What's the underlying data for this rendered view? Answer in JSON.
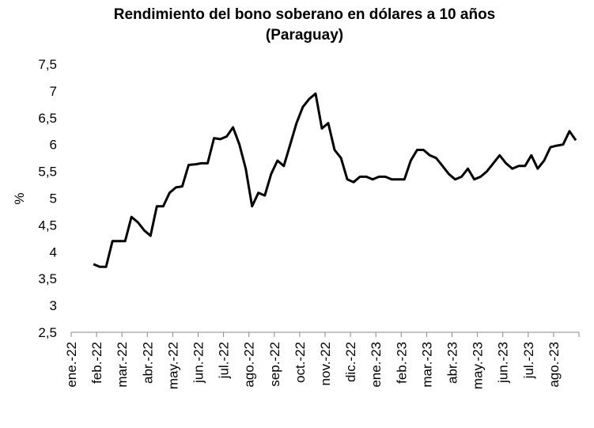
{
  "chart_data": {
    "type": "line",
    "title": "Rendimiento del bono soberano en dólares a 10 años",
    "subtitle": "(Paraguay)",
    "y_label": "%",
    "categories": [
      "ene.-22",
      null,
      null,
      null,
      "feb.-22",
      null,
      null,
      null,
      "mar.-22",
      null,
      null,
      null,
      "abr.-22",
      null,
      null,
      null,
      "may.-22",
      null,
      null,
      null,
      "jun.-22",
      null,
      null,
      null,
      "jul.-22",
      null,
      null,
      null,
      "ago.-22",
      null,
      null,
      null,
      "sep.-22",
      null,
      null,
      null,
      "oct.-22",
      null,
      null,
      null,
      "nov.-22",
      null,
      null,
      null,
      "dic.-22",
      null,
      null,
      null,
      "ene.-23",
      null,
      null,
      null,
      "feb.-23",
      null,
      null,
      null,
      "mar.-23",
      null,
      null,
      null,
      "abr.-23",
      null,
      null,
      null,
      "may.-23",
      null,
      null,
      null,
      "jun.-23",
      null,
      null,
      null,
      "jul.-23",
      null,
      null,
      null,
      "ago.-23",
      null,
      null,
      null
    ],
    "series": [
      {
        "name": null,
        "color": "#000000",
        "values": [
          null,
          null,
          null,
          3.77,
          3.72,
          3.72,
          4.2,
          4.2,
          4.2,
          4.65,
          4.55,
          4.4,
          4.3,
          4.85,
          4.85,
          5.1,
          5.2,
          5.22,
          5.62,
          5.63,
          5.65,
          5.65,
          6.12,
          6.1,
          6.15,
          6.32,
          6.0,
          5.55,
          4.85,
          5.1,
          5.05,
          5.45,
          5.7,
          5.6,
          6.0,
          6.4,
          6.7,
          6.85,
          6.95,
          6.3,
          6.4,
          5.9,
          5.75,
          5.35,
          5.3,
          5.4,
          5.4,
          5.35,
          5.4,
          5.4,
          5.35,
          5.35,
          5.35,
          5.7,
          5.9,
          5.9,
          5.8,
          5.75,
          5.6,
          5.45,
          5.35,
          5.4,
          5.55,
          5.35,
          5.4,
          5.5,
          5.65,
          5.8,
          5.65,
          5.55,
          5.6,
          5.6,
          5.8,
          5.55,
          5.7,
          5.95,
          5.98,
          6.0,
          6.25,
          6.08
        ]
      }
    ],
    "ylim": [
      2.5,
      7.5
    ],
    "yticks": [
      {
        "value": 2.5,
        "label": "2,5"
      },
      3,
      {
        "value": 3.5,
        "label": "3,5"
      },
      4,
      {
        "value": 4.5,
        "label": "4,5"
      },
      5,
      {
        "value": 5.5,
        "label": "5,5"
      },
      6,
      {
        "value": 6.5,
        "label": "6,5"
      },
      7,
      {
        "value": 7.5,
        "label": "7,5"
      }
    ],
    "grid": false
  }
}
